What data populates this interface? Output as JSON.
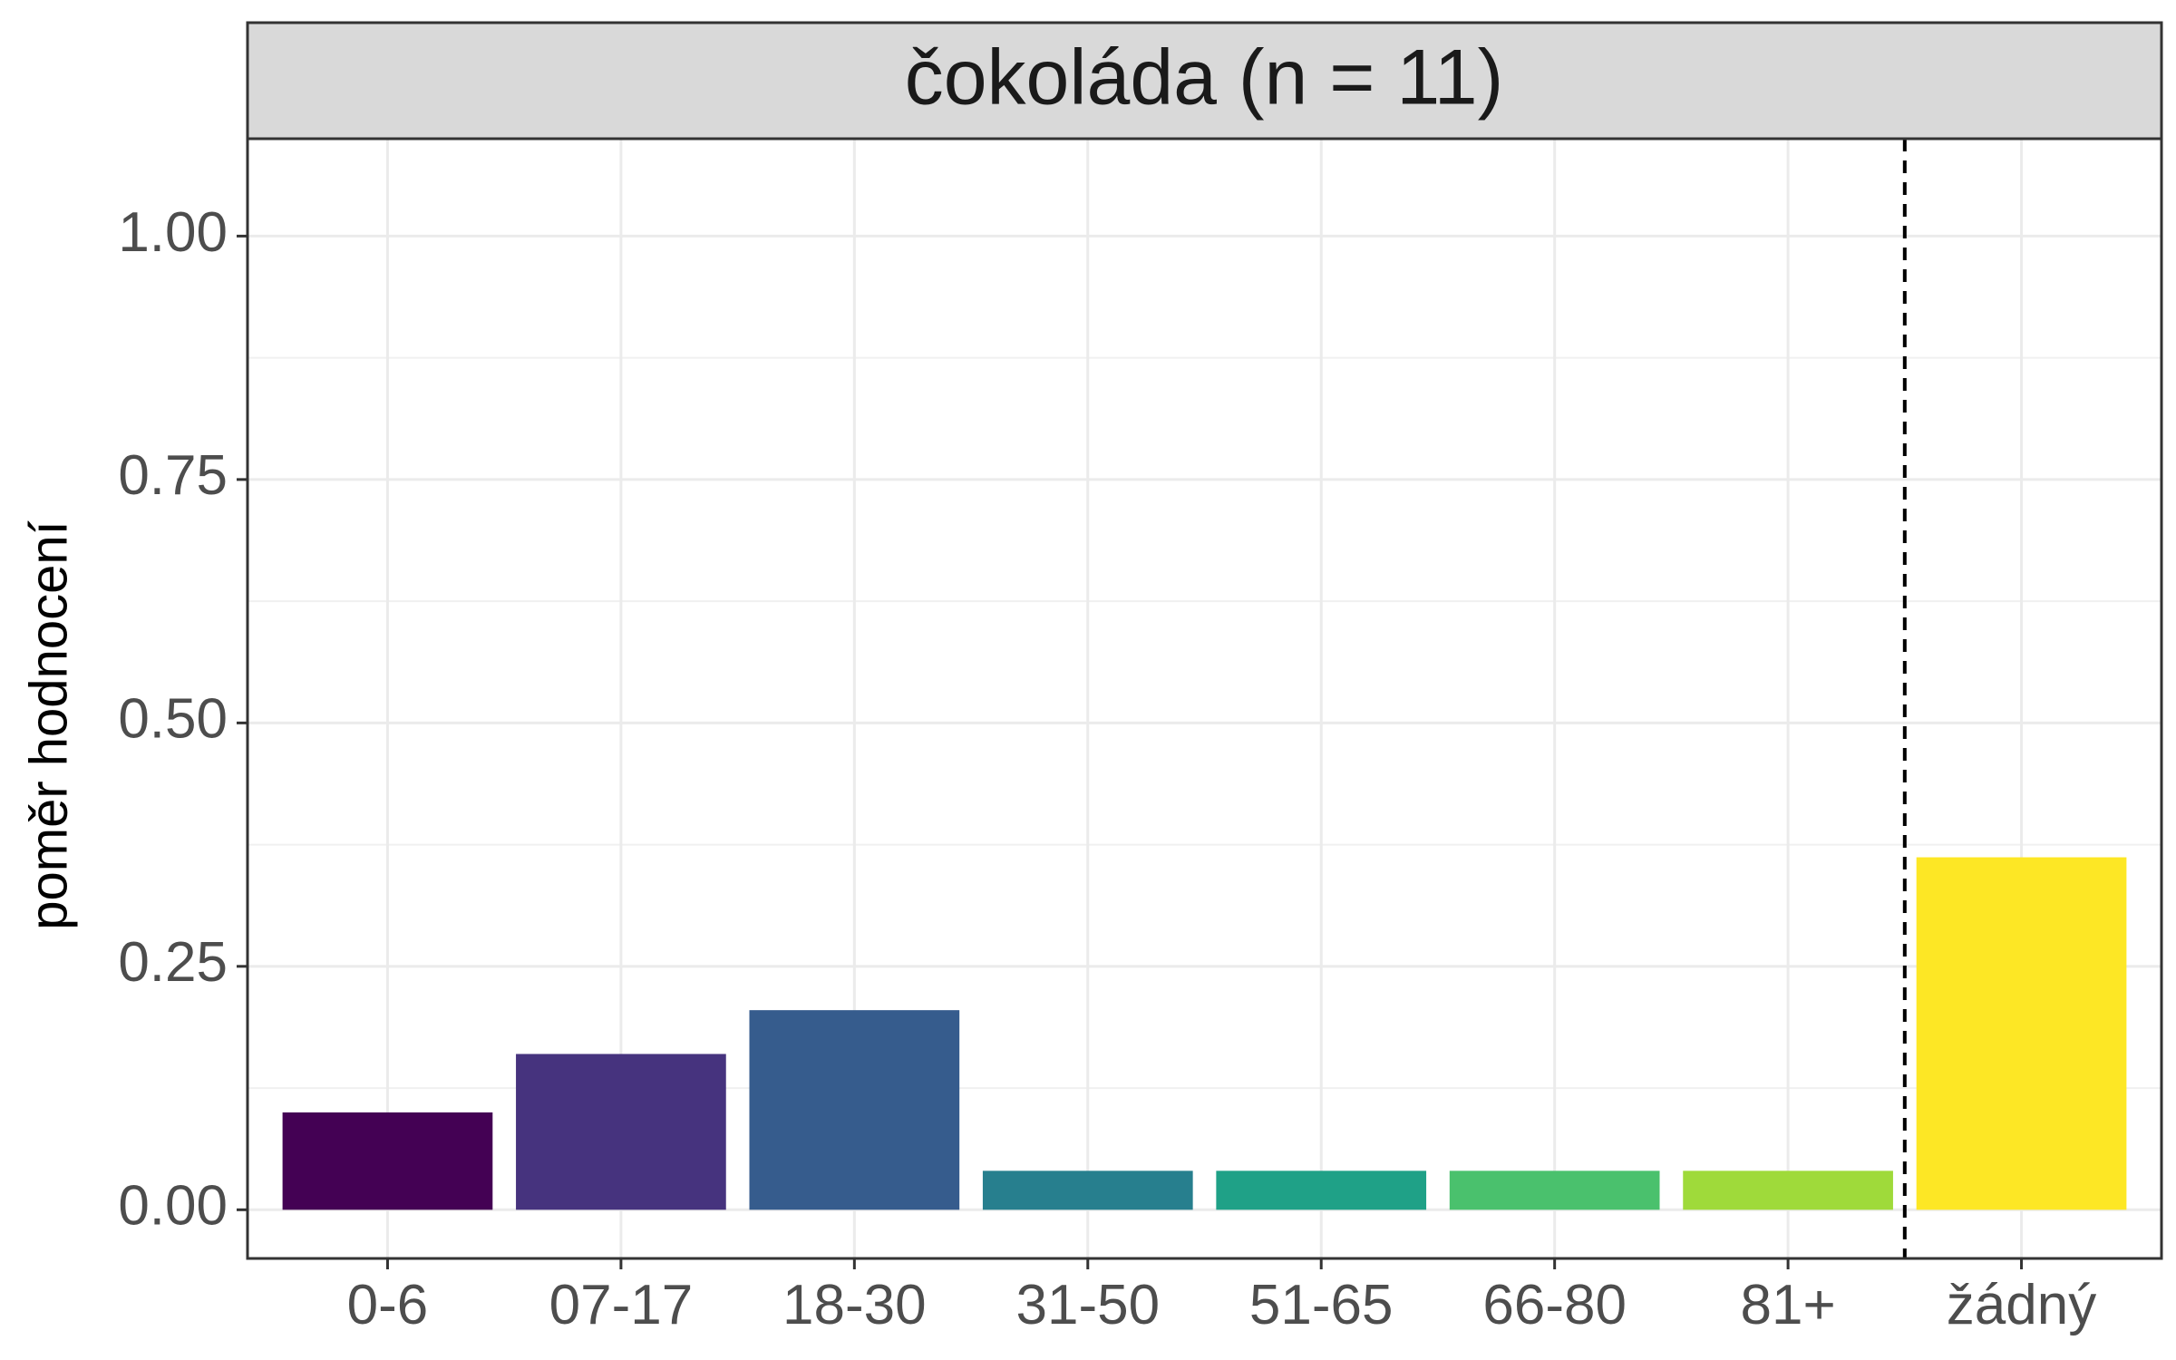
{
  "chart_data": {
    "type": "bar",
    "facet_title": "čokoláda (n = 11)",
    "ylabel": "poměr hodnocení",
    "xlabel": "",
    "categories": [
      "0-6",
      "07-17",
      "18-30",
      "31-50",
      "51-65",
      "66-80",
      "81+",
      "žádný"
    ],
    "values": [
      0.1,
      0.16,
      0.205,
      0.04,
      0.04,
      0.04,
      0.04,
      0.362
    ],
    "colors": [
      "#440154",
      "#46337e",
      "#365c8d",
      "#277f8e",
      "#1fa187",
      "#4ac16d",
      "#9fda3a",
      "#fde725"
    ],
    "ylim": [
      -0.05,
      1.1
    ],
    "yticks": [
      0,
      0.25,
      0.5,
      0.75,
      1.0
    ],
    "ytick_labels": [
      "0.00",
      "0.25",
      "0.50",
      "0.75",
      "1.00"
    ],
    "separator_after_index": 6,
    "grid": true,
    "legend": "none"
  }
}
